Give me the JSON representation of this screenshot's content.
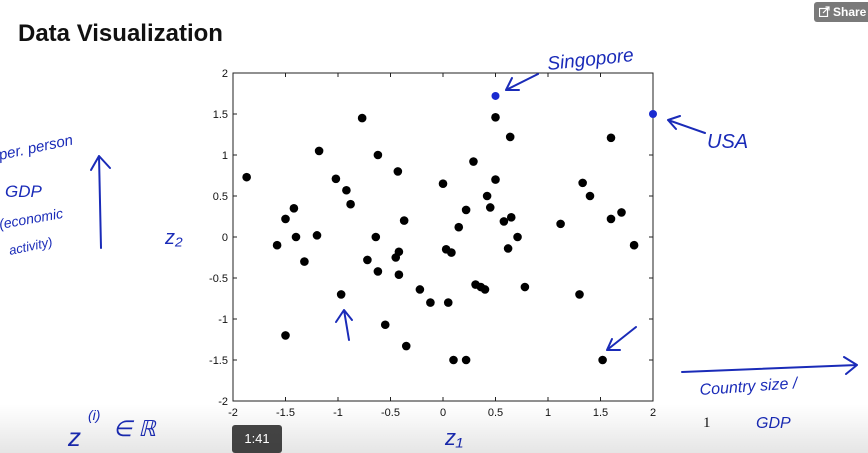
{
  "slide": {
    "title": "Data Visualization",
    "page_number": "1"
  },
  "player": {
    "share_label": "Share",
    "share_icon": "share-icon",
    "timestamp": "1:41"
  },
  "annotations": {
    "singapore": "Singopore",
    "usa": "USA",
    "y_note_line1": "per. person",
    "y_note_line2": "GDP",
    "y_note_line3": "(economic",
    "y_note_line4": "activity)",
    "z2_label": "z₂",
    "z1_label": "z₁",
    "x_note_line1": "Country size /",
    "x_note_line2": "GDP",
    "z_vector": "z",
    "z_vector_sup": "(i)",
    "z_vector_set": "∈ ℝ",
    "ink_color": "#1a2bb8"
  },
  "chart_data": {
    "type": "scatter",
    "title": "",
    "xlabel": "",
    "ylabel": "",
    "xlim": [
      -2,
      2
    ],
    "ylim": [
      -2,
      2
    ],
    "xticks": [
      -2,
      -1.5,
      -1,
      -0.5,
      0,
      0.5,
      1,
      1.5,
      2
    ],
    "xtick_labels": [
      "-2",
      "-1.5",
      "-1",
      "-0.5",
      "0",
      "0.5",
      "1",
      "1.5",
      "2"
    ],
    "yticks": [
      -2,
      -1.5,
      -1,
      -0.5,
      0,
      0.5,
      1,
      1.5,
      2
    ],
    "ytick_labels": [
      "-2",
      "-1.5",
      "-1",
      "-0.5",
      "0",
      "0.5",
      "1",
      "1.5",
      "2"
    ],
    "grid": false,
    "series": [
      {
        "name": "countries",
        "color": "#000000",
        "points": [
          [
            -1.87,
            0.73
          ],
          [
            -1.5,
            0.22
          ],
          [
            -1.42,
            0.35
          ],
          [
            -1.58,
            -0.1
          ],
          [
            -1.4,
            0.0
          ],
          [
            -1.32,
            -0.3
          ],
          [
            -1.5,
            -1.2
          ],
          [
            -1.2,
            0.02
          ],
          [
            -1.18,
            1.05
          ],
          [
            -1.02,
            0.71
          ],
          [
            -0.92,
            0.57
          ],
          [
            -0.88,
            0.4
          ],
          [
            -0.77,
            1.45
          ],
          [
            -0.97,
            -0.7
          ],
          [
            -0.72,
            -0.28
          ],
          [
            -0.62,
            1.0
          ],
          [
            -0.64,
            0.0
          ],
          [
            -0.62,
            -0.42
          ],
          [
            -0.55,
            -1.07
          ],
          [
            -0.45,
            -0.25
          ],
          [
            -0.42,
            -0.18
          ],
          [
            -0.43,
            0.8
          ],
          [
            -0.42,
            -0.46
          ],
          [
            -0.37,
            0.2
          ],
          [
            -0.35,
            -1.33
          ],
          [
            -0.22,
            -0.64
          ],
          [
            -0.12,
            -0.8
          ],
          [
            0.0,
            0.65
          ],
          [
            0.03,
            -0.15
          ],
          [
            0.05,
            -0.8
          ],
          [
            0.08,
            -0.19
          ],
          [
            0.1,
            -1.5
          ],
          [
            0.15,
            0.12
          ],
          [
            0.22,
            0.33
          ],
          [
            0.22,
            -1.5
          ],
          [
            0.29,
            0.92
          ],
          [
            0.31,
            -0.58
          ],
          [
            0.36,
            -0.61
          ],
          [
            0.4,
            -0.64
          ],
          [
            0.42,
            0.5
          ],
          [
            0.45,
            0.36
          ],
          [
            0.5,
            1.46
          ],
          [
            0.5,
            0.7
          ],
          [
            0.58,
            0.19
          ],
          [
            0.62,
            -0.14
          ],
          [
            0.64,
            1.22
          ],
          [
            0.65,
            0.24
          ],
          [
            0.71,
            0.0
          ],
          [
            0.78,
            -0.61
          ],
          [
            1.12,
            0.16
          ],
          [
            1.3,
            -0.7
          ],
          [
            1.33,
            0.66
          ],
          [
            1.4,
            0.5
          ],
          [
            1.52,
            -1.5
          ],
          [
            1.6,
            1.21
          ],
          [
            1.6,
            0.22
          ],
          [
            1.7,
            0.3
          ],
          [
            1.82,
            -0.1
          ]
        ]
      },
      {
        "name": "highlighted",
        "color": "#1a2bd0",
        "points": [
          [
            0.5,
            1.72
          ],
          [
            2.0,
            1.5
          ]
        ]
      }
    ]
  }
}
